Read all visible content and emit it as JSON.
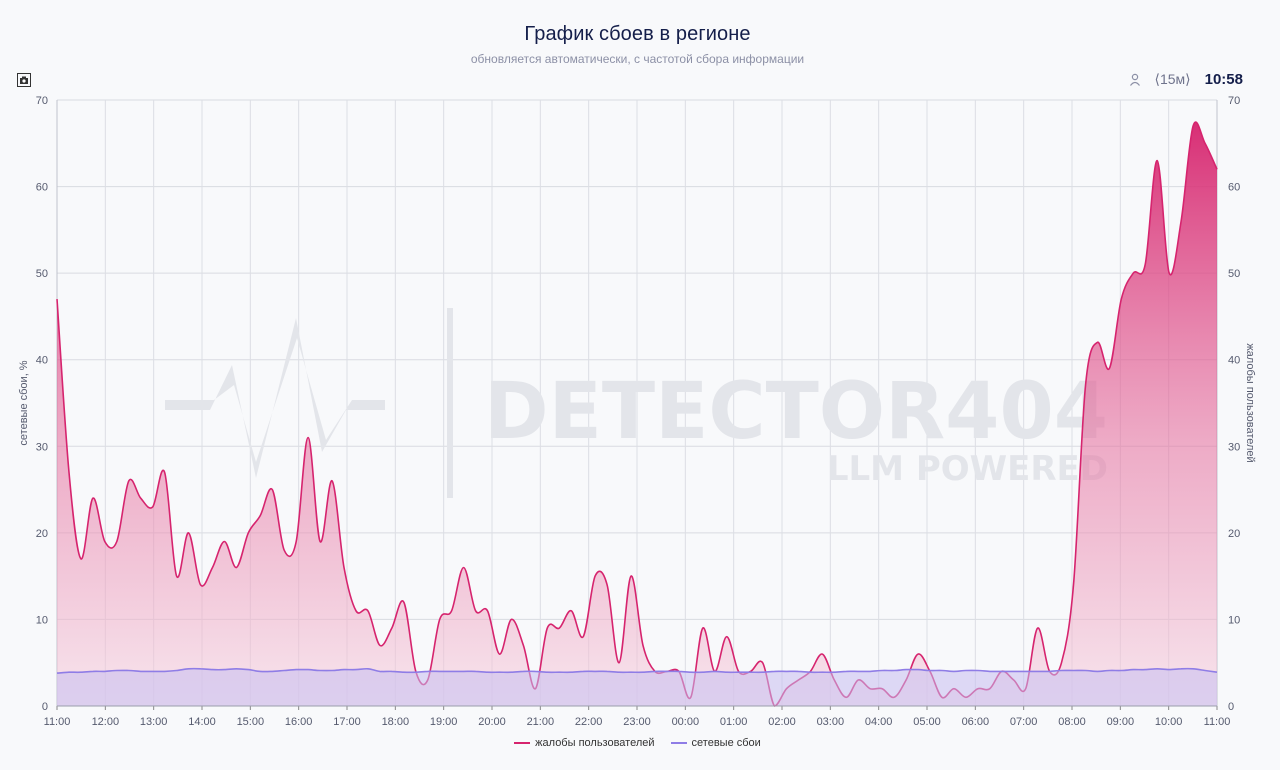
{
  "header": {
    "title": "График сбоев в регионе",
    "subtitle": "обновляется автоматически, с частотой сбора информации"
  },
  "toolbar": {
    "camera_icon": "camera-icon",
    "user_icon": "user-icon",
    "interval": "⟨15м⟩",
    "time": "10:58"
  },
  "watermark": {
    "brand": "DETECTOR404",
    "tagline": "LLM POWERED"
  },
  "chart_data": {
    "type": "area",
    "x_labels": [
      "11:00",
      "12:00",
      "13:00",
      "14:00",
      "15:00",
      "16:00",
      "17:00",
      "18:00",
      "19:00",
      "20:00",
      "21:00",
      "22:00",
      "23:00",
      "00:00",
      "01:00",
      "02:00",
      "03:00",
      "04:00",
      "05:00",
      "06:00",
      "07:00",
      "08:00",
      "09:00",
      "10:00",
      "11:00"
    ],
    "x_step_minutes": 15,
    "ylim": [
      0,
      70
    ],
    "y_ticks": [
      0,
      10,
      20,
      30,
      40,
      50,
      60,
      70
    ],
    "ylabel_left": "сетевые сбои, %",
    "ylabel_right": "жалобы пользователей",
    "grid": true,
    "legend_position": "bottom-center",
    "series": [
      {
        "name": "жалобы пользователей",
        "color": "#d6246e",
        "values": [
          47,
          27,
          17,
          24,
          19,
          19,
          26,
          24,
          23,
          27,
          15,
          20,
          14,
          16,
          19,
          16,
          20,
          22,
          25,
          18,
          19,
          31,
          19,
          26,
          16,
          11,
          11,
          7,
          9,
          12,
          4,
          3,
          10,
          11,
          16,
          11,
          11,
          6,
          10,
          7,
          2,
          9,
          9,
          11,
          8,
          15,
          14,
          5,
          15,
          7,
          4,
          4,
          4,
          1,
          9,
          4,
          8,
          4,
          4,
          5,
          0,
          2,
          3,
          4,
          6,
          3,
          1,
          3,
          2,
          2,
          1,
          3,
          6,
          4,
          1,
          2,
          1,
          2,
          2,
          4,
          3,
          2,
          9,
          4,
          5,
          14,
          37,
          42,
          39,
          47,
          50,
          51,
          63,
          50,
          56,
          67,
          65,
          62
        ]
      },
      {
        "name": "сетевые сбои",
        "color": "#8f7de6",
        "values": [
          3.8,
          3.9,
          3.9,
          4,
          4,
          4.1,
          4.1,
          4,
          4,
          4,
          4.1,
          4.3,
          4.3,
          4.2,
          4.2,
          4.3,
          4.2,
          4,
          4,
          4.1,
          4.2,
          4.2,
          4.1,
          4.1,
          4.2,
          4.2,
          4.3,
          4,
          4,
          3.9,
          3.9,
          4,
          4,
          4,
          4,
          4,
          3.9,
          3.9,
          3.9,
          4,
          4,
          3.9,
          3.9,
          3.9,
          4,
          4,
          4,
          3.9,
          3.9,
          3.9,
          4,
          4,
          4,
          3.9,
          3.9,
          4,
          3.9,
          3.9,
          3.9,
          3.9,
          4,
          4,
          4,
          3.9,
          3.9,
          3.9,
          4,
          4,
          4,
          4.1,
          4.1,
          4.2,
          4.2,
          4.1,
          4.1,
          4,
          4.1,
          4.1,
          4,
          4,
          4,
          4,
          4,
          4,
          4.1,
          4.1,
          4.1,
          4,
          4.1,
          4.1,
          4.2,
          4.2,
          4.3,
          4.2,
          4.3,
          4.3,
          4.1,
          3.9
        ]
      }
    ]
  }
}
